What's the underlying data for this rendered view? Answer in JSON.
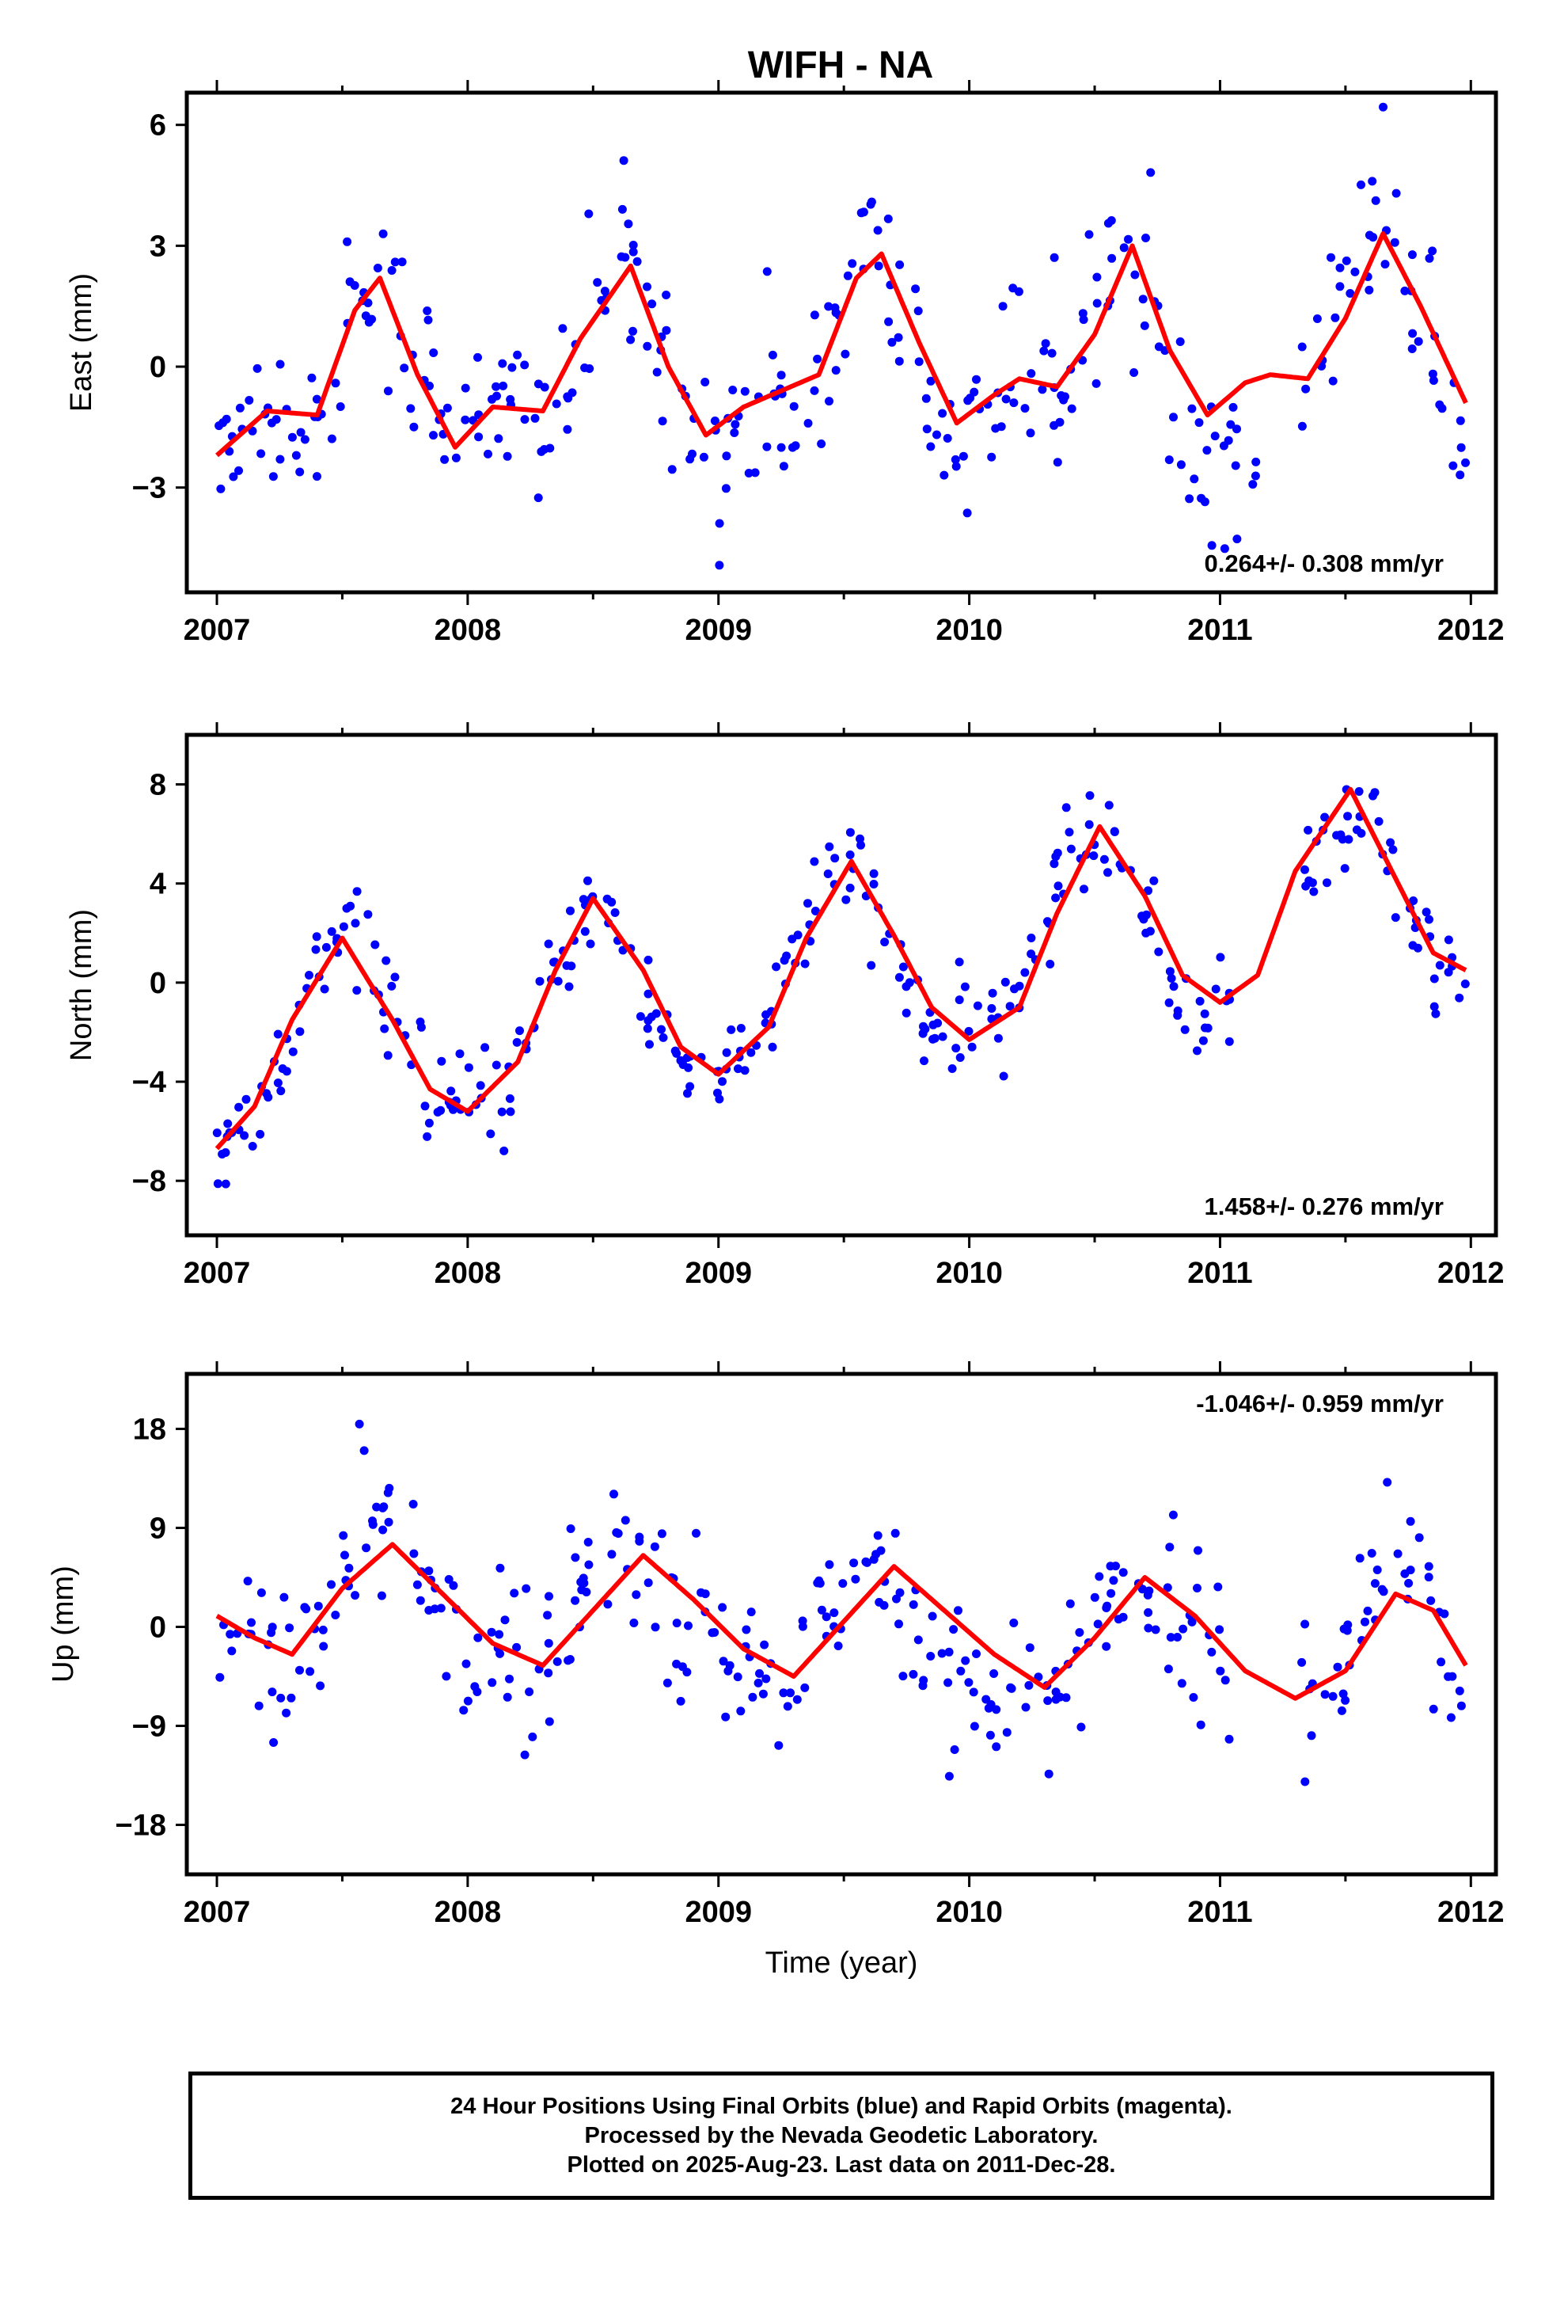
{
  "title": "WIFH - NA",
  "footer": {
    "line1": "24 Hour Positions Using Final Orbits (blue) and Rapid Orbits (magenta).",
    "line2": "Processed by the Nevada Geodetic Laboratory.",
    "line3": "Plotted on 2025-Aug-23. Last data on 2011-Dec-28."
  },
  "colors": {
    "points": "#0000ff",
    "model": "#ff0000",
    "axis": "#000000"
  },
  "chart_data": [
    {
      "type": "scatter",
      "name": "east",
      "ylabel": "East (mm)",
      "xlabel": "",
      "xlim": [
        2006.88,
        2012.1
      ],
      "ylim": [
        -5.6,
        6.8
      ],
      "xticks": [
        2007,
        2008,
        2009,
        2010,
        2011,
        2012
      ],
      "yticks": [
        6,
        3,
        0,
        -3
      ],
      "ytick_labels": [
        "6",
        "3",
        "0",
        "−3"
      ],
      "rate_label": "0.264+/- 0.308 mm/yr",
      "rate_position": "bottom-right",
      "model": {
        "x": [
          2007.0,
          2007.2,
          2007.4,
          2007.55,
          2007.65,
          2007.8,
          2007.95,
          2008.1,
          2008.3,
          2008.45,
          2008.65,
          2008.8,
          2008.95,
          2009.1,
          2009.25,
          2009.4,
          2009.55,
          2009.65,
          2009.8,
          2009.95,
          2010.1,
          2010.2,
          2010.35,
          2010.5,
          2010.65,
          2010.8,
          2010.95,
          2011.1,
          2011.2,
          2011.35,
          2011.5,
          2011.65,
          2011.8,
          2011.98
        ],
        "y": [
          -2.2,
          -1.1,
          -1.2,
          1.4,
          2.2,
          -0.2,
          -2.0,
          -1.0,
          -1.1,
          0.7,
          2.5,
          0.0,
          -1.7,
          -1.0,
          -0.6,
          -0.2,
          2.2,
          2.8,
          0.6,
          -1.4,
          -0.7,
          -0.3,
          -0.5,
          0.8,
          3.0,
          0.4,
          -1.2,
          -0.4,
          -0.2,
          -0.3,
          1.2,
          3.3,
          1.5,
          -0.9
        ]
      },
      "series": {
        "x": [
          2007.0,
          2007.1,
          2007.2,
          2007.3,
          2007.4,
          2007.5,
          2007.6,
          2007.7,
          2007.8,
          2007.9,
          2008.0,
          2008.1,
          2008.2,
          2008.3,
          2008.4,
          2008.5,
          2008.6,
          2008.7,
          2008.8,
          2008.9,
          2009.0,
          2009.1,
          2009.2,
          2009.3,
          2009.4,
          2009.5,
          2009.6,
          2009.7,
          2009.8,
          2009.9,
          2010.0,
          2010.1,
          2010.2,
          2010.3,
          2010.4,
          2010.5,
          2010.6,
          2010.7,
          2010.8,
          2010.9,
          2011.0,
          2011.1,
          2011.35,
          2011.45,
          2011.55,
          2011.65,
          2011.75,
          2011.85,
          2011.95
        ],
        "y": [
          -2.0,
          -1.3,
          -0.8,
          -1.5,
          -0.9,
          0.6,
          2.0,
          1.5,
          0.2,
          -0.8,
          -1.3,
          -1.6,
          -0.9,
          -1.4,
          -0.6,
          1.2,
          2.9,
          1.2,
          -0.5,
          -1.4,
          -2.3,
          -1.1,
          -0.4,
          -1.3,
          -0.2,
          1.5,
          3.0,
          1.7,
          0.0,
          -1.7,
          -1.2,
          -0.8,
          0.0,
          -0.9,
          -0.1,
          1.8,
          3.4,
          1.0,
          -0.6,
          -1.5,
          -1.9,
          -2.1,
          -0.5,
          1.0,
          3.6,
          4.2,
          2.3,
          0.6,
          -1.3
        ]
      }
    },
    {
      "type": "scatter",
      "name": "north",
      "ylabel": "North (mm)",
      "xlabel": "",
      "xlim": [
        2006.88,
        2012.1
      ],
      "ylim": [
        -10.2,
        10.0
      ],
      "xticks": [
        2007,
        2008,
        2009,
        2010,
        2011,
        2012
      ],
      "yticks": [
        8,
        4,
        0,
        -4,
        -8
      ],
      "ytick_labels": [
        "8",
        "4",
        "0",
        "−4",
        "−8"
      ],
      "rate_label": "1.458+/- 0.276 mm/yr",
      "rate_position": "bottom-right",
      "model": {
        "x": [
          2007.0,
          2007.15,
          2007.3,
          2007.5,
          2007.7,
          2007.85,
          2008.0,
          2008.2,
          2008.35,
          2008.5,
          2008.7,
          2008.85,
          2009.0,
          2009.2,
          2009.35,
          2009.53,
          2009.7,
          2009.85,
          2010.0,
          2010.2,
          2010.35,
          2010.52,
          2010.7,
          2010.85,
          2011.0,
          2011.15,
          2011.3,
          2011.52,
          2011.7,
          2011.85,
          2011.98
        ],
        "y": [
          -6.7,
          -5.0,
          -1.5,
          1.8,
          -1.5,
          -4.3,
          -5.2,
          -3.2,
          0.5,
          3.4,
          0.5,
          -2.6,
          -3.7,
          -1.8,
          1.8,
          4.9,
          1.9,
          -1.0,
          -2.3,
          -1.0,
          2.8,
          6.3,
          3.5,
          0.3,
          -0.8,
          0.3,
          4.5,
          7.8,
          4.2,
          1.2,
          0.5
        ]
      },
      "series": {
        "x": [
          2007.0,
          2007.1,
          2007.2,
          2007.3,
          2007.4,
          2007.5,
          2007.6,
          2007.7,
          2007.8,
          2007.9,
          2008.0,
          2008.1,
          2008.2,
          2008.3,
          2008.4,
          2008.5,
          2008.6,
          2008.7,
          2008.8,
          2008.9,
          2009.0,
          2009.1,
          2009.2,
          2009.3,
          2009.4,
          2009.5,
          2009.6,
          2009.7,
          2009.8,
          2009.9,
          2010.0,
          2010.1,
          2010.2,
          2010.3,
          2010.4,
          2010.5,
          2010.6,
          2010.7,
          2010.8,
          2010.9,
          2011.0,
          2011.35,
          2011.45,
          2011.55,
          2011.65,
          2011.75,
          2011.85,
          2011.95
        ],
        "y": [
          -7.8,
          -6.3,
          -4.6,
          -2.4,
          0.6,
          1.9,
          1.2,
          -0.9,
          -3.5,
          -5.0,
          -5.3,
          -4.9,
          -3.4,
          -1.3,
          1.6,
          3.6,
          2.2,
          -0.6,
          -2.6,
          -3.6,
          -3.5,
          -2.8,
          -1.4,
          0.8,
          3.2,
          5.0,
          3.8,
          0.9,
          -1.5,
          -2.3,
          -2.2,
          -1.8,
          0.0,
          2.6,
          5.0,
          6.2,
          5.8,
          2.6,
          0.1,
          -1.0,
          -1.5,
          4.6,
          5.8,
          6.4,
          5.9,
          3.0,
          0.9,
          0.0
        ]
      }
    },
    {
      "type": "scatter",
      "name": "up",
      "ylabel": "Up (mm)",
      "xlabel": "Time (year)",
      "xlim": [
        2006.88,
        2012.1
      ],
      "ylim": [
        -22.5,
        23.0
      ],
      "xticks": [
        2007,
        2008,
        2009,
        2010,
        2011,
        2012
      ],
      "yticks": [
        18,
        9,
        0,
        -9,
        -18
      ],
      "ytick_labels": [
        "18",
        "9",
        "0",
        "−9",
        "−18"
      ],
      "rate_label": "-1.046+/- 0.959 mm/yr",
      "rate_position": "top-right",
      "model": {
        "x": [
          2007.0,
          2007.15,
          2007.3,
          2007.5,
          2007.7,
          2007.9,
          2008.1,
          2008.3,
          2008.5,
          2008.7,
          2008.9,
          2009.1,
          2009.3,
          2009.5,
          2009.7,
          2009.9,
          2010.1,
          2010.3,
          2010.5,
          2010.7,
          2010.9,
          2011.1,
          2011.3,
          2011.5,
          2011.7,
          2011.85,
          2011.98
        ],
        "y": [
          1.0,
          -1.0,
          -2.5,
          3.5,
          7.5,
          3.0,
          -1.5,
          -3.5,
          1.5,
          6.5,
          2.5,
          -2.0,
          -4.5,
          0.5,
          5.5,
          1.5,
          -2.5,
          -5.5,
          -1.0,
          4.5,
          1.0,
          -4.0,
          -6.5,
          -4.0,
          3.0,
          1.5,
          -3.5
        ]
      },
      "series": {
        "x": [
          2007.0,
          2007.1,
          2007.2,
          2007.3,
          2007.4,
          2007.5,
          2007.6,
          2007.7,
          2007.8,
          2007.9,
          2008.0,
          2008.1,
          2008.2,
          2008.3,
          2008.4,
          2008.5,
          2008.6,
          2008.7,
          2008.8,
          2008.9,
          2009.0,
          2009.1,
          2009.2,
          2009.3,
          2009.4,
          2009.5,
          2009.6,
          2009.7,
          2009.8,
          2009.9,
          2010.0,
          2010.1,
          2010.2,
          2010.3,
          2010.4,
          2010.5,
          2010.6,
          2010.7,
          2010.8,
          2010.9,
          2011.0,
          2011.35,
          2011.45,
          2011.55,
          2011.65,
          2011.75,
          2011.85,
          2011.95
        ],
        "y": [
          0.5,
          -2.0,
          -1.2,
          -3.5,
          -1.0,
          4.0,
          8.5,
          9.5,
          5.0,
          2.0,
          -1.0,
          -2.5,
          -4.5,
          -3.0,
          0.5,
          4.5,
          7.0,
          4.5,
          2.0,
          -0.5,
          -2.0,
          -4.5,
          -5.5,
          -3.0,
          1.5,
          3.5,
          5.5,
          3.0,
          -0.5,
          -3.0,
          -4.5,
          -6.0,
          -6.5,
          -7.5,
          -4.0,
          0.5,
          3.0,
          4.5,
          2.0,
          -1.0,
          0.0,
          -7.5,
          -5.0,
          1.5,
          4.5,
          5.5,
          2.5,
          -3.5
        ]
      }
    }
  ]
}
